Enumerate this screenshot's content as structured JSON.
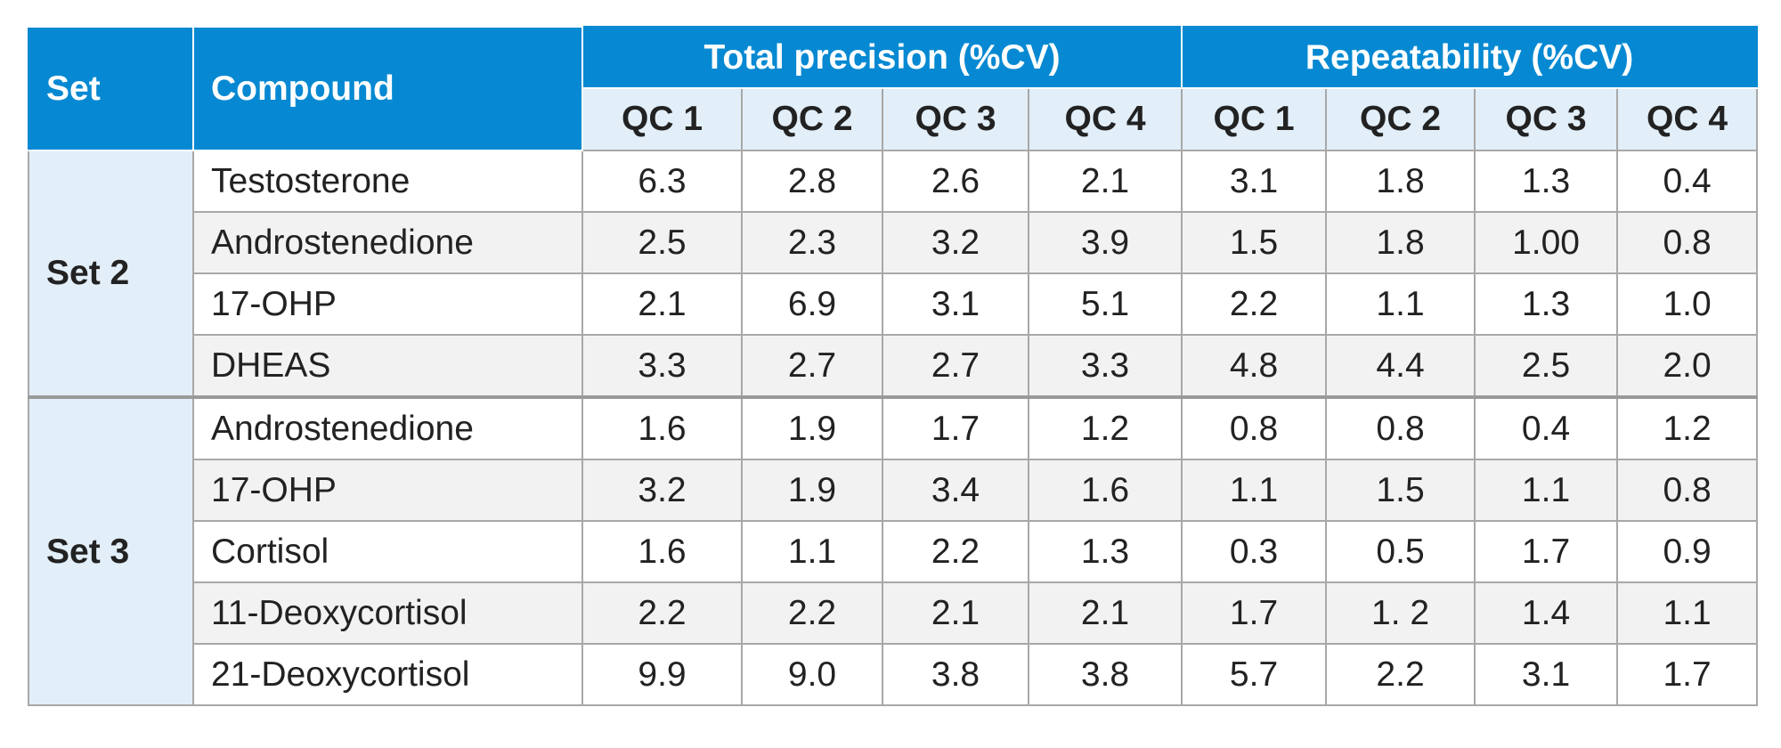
{
  "header": {
    "set_label": "Set",
    "compound_label": "Compound",
    "total_precision_label": "Total precision (%CV)",
    "repeatability_label": "Repeatability (%CV)",
    "total_qc": [
      "QC 1",
      "QC 2",
      "QC 3",
      "QC 4"
    ],
    "repeat_qc": [
      "QC 1",
      "QC 2",
      "QC 3",
      "QC 4"
    ]
  },
  "groups": [
    {
      "set": "Set 2",
      "rows": [
        {
          "compound": "Testosterone",
          "total": [
            "6.3",
            "2.8",
            "2.6",
            "2.1"
          ],
          "repeat": [
            "3.1",
            "1.8",
            "1.3",
            "0.4"
          ]
        },
        {
          "compound": "Androstenedione",
          "total": [
            "2.5",
            "2.3",
            "3.2",
            "3.9"
          ],
          "repeat": [
            "1.5",
            "1.8",
            "1.00",
            "0.8"
          ]
        },
        {
          "compound": "17-OHP",
          "total": [
            "2.1",
            "6.9",
            "3.1",
            "5.1"
          ],
          "repeat": [
            "2.2",
            "1.1",
            "1.3",
            "1.0"
          ]
        },
        {
          "compound": "DHEAS",
          "total": [
            "3.3",
            "2.7",
            "2.7",
            "3.3"
          ],
          "repeat": [
            "4.8",
            "4.4",
            "2.5",
            "2.0"
          ]
        }
      ]
    },
    {
      "set": "Set 3",
      "rows": [
        {
          "compound": "Androstenedione",
          "total": [
            "1.6",
            "1.9",
            "1.7",
            "1.2"
          ],
          "repeat": [
            "0.8",
            "0.8",
            "0.4",
            "1.2"
          ]
        },
        {
          "compound": "17-OHP",
          "total": [
            "3.2",
            "1.9",
            "3.4",
            "1.6"
          ],
          "repeat": [
            "1.1",
            "1.5",
            "1.1",
            "0.8"
          ]
        },
        {
          "compound": "Cortisol",
          "total": [
            "1.6",
            "1.1",
            "2.2",
            "1.3"
          ],
          "repeat": [
            "0.3",
            "0.5",
            "1.7",
            "0.9"
          ]
        },
        {
          "compound": "11-Deoxycortisol",
          "total": [
            "2.2",
            "2.2",
            "2.1",
            "2.1"
          ],
          "repeat": [
            "1.7",
            "1. 2",
            "1.4",
            "1.1"
          ]
        },
        {
          "compound": "21-Deoxycortisol",
          "total": [
            "9.9",
            "9.0",
            "3.8",
            "3.8"
          ],
          "repeat": [
            "5.7",
            "2.2",
            "3.1",
            "1.7"
          ]
        }
      ]
    }
  ],
  "colors": {
    "header_blue": "#0689d2",
    "subheader_light_blue": "#e2eef8",
    "row_alt_gray": "#f2f2f3",
    "border_gray": "#a8a8a8"
  }
}
